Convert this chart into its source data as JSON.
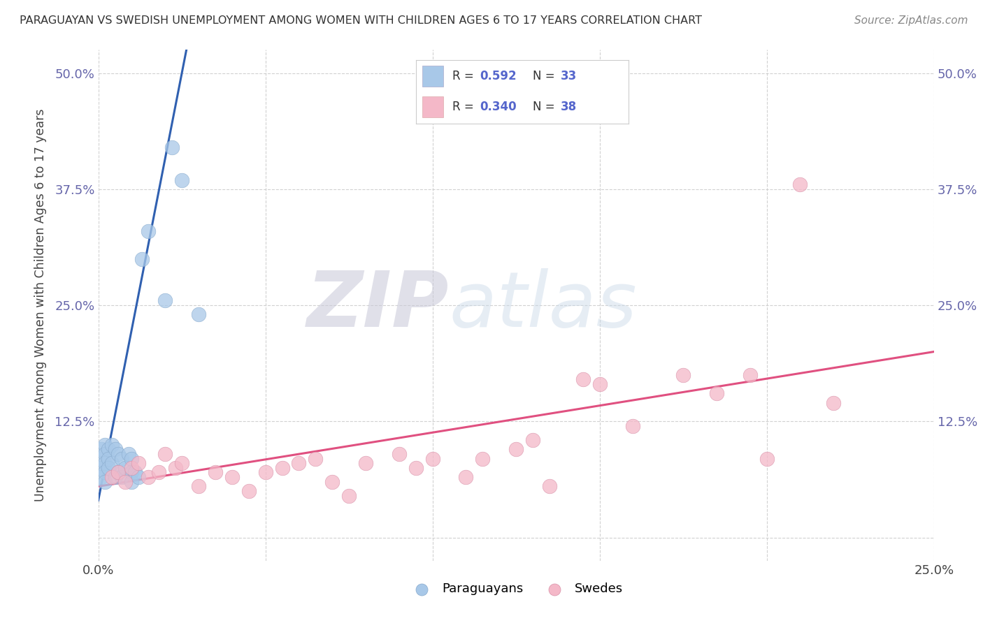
{
  "title": "PARAGUAYAN VS SWEDISH UNEMPLOYMENT AMONG WOMEN WITH CHILDREN AGES 6 TO 17 YEARS CORRELATION CHART",
  "source": "Source: ZipAtlas.com",
  "ylabel": "Unemployment Among Women with Children Ages 6 to 17 years",
  "xlim": [
    0.0,
    0.25
  ],
  "ylim": [
    -0.025,
    0.525
  ],
  "paraguayan_R": 0.592,
  "paraguayan_N": 33,
  "swedish_R": 0.34,
  "swedish_N": 38,
  "paraguayan_color": "#a8c8e8",
  "swedish_color": "#f4b8c8",
  "paraguayan_line_color": "#3060b0",
  "swedish_line_color": "#e05080",
  "watermark_zip": "ZIP",
  "watermark_atlas": "atlas",
  "bg_color": "#ffffff",
  "paraguayan_x": [
    0.001,
    0.001,
    0.001,
    0.001,
    0.002,
    0.002,
    0.002,
    0.002,
    0.002,
    0.003,
    0.003,
    0.003,
    0.004,
    0.004,
    0.005,
    0.005,
    0.006,
    0.006,
    0.007,
    0.007,
    0.008,
    0.009,
    0.01,
    0.01,
    0.01,
    0.011,
    0.012,
    0.013,
    0.015,
    0.02,
    0.022,
    0.025,
    0.03
  ],
  "paraguayan_y": [
    0.085,
    0.095,
    0.075,
    0.065,
    0.1,
    0.09,
    0.08,
    0.07,
    0.06,
    0.095,
    0.085,
    0.075,
    0.1,
    0.08,
    0.095,
    0.065,
    0.09,
    0.07,
    0.085,
    0.065,
    0.075,
    0.09,
    0.085,
    0.07,
    0.06,
    0.07,
    0.065,
    0.3,
    0.33,
    0.255,
    0.42,
    0.385,
    0.24
  ],
  "swedish_x": [
    0.004,
    0.006,
    0.008,
    0.01,
    0.012,
    0.015,
    0.018,
    0.02,
    0.023,
    0.025,
    0.03,
    0.035,
    0.04,
    0.045,
    0.05,
    0.055,
    0.06,
    0.065,
    0.07,
    0.075,
    0.08,
    0.09,
    0.095,
    0.1,
    0.11,
    0.115,
    0.125,
    0.13,
    0.135,
    0.145,
    0.15,
    0.16,
    0.175,
    0.185,
    0.195,
    0.2,
    0.21,
    0.22
  ],
  "swedish_y": [
    0.065,
    0.07,
    0.06,
    0.075,
    0.08,
    0.065,
    0.07,
    0.09,
    0.075,
    0.08,
    0.055,
    0.07,
    0.065,
    0.05,
    0.07,
    0.075,
    0.08,
    0.085,
    0.06,
    0.045,
    0.08,
    0.09,
    0.075,
    0.085,
    0.065,
    0.085,
    0.095,
    0.105,
    0.055,
    0.17,
    0.165,
    0.12,
    0.175,
    0.155,
    0.175,
    0.085,
    0.38,
    0.145
  ]
}
